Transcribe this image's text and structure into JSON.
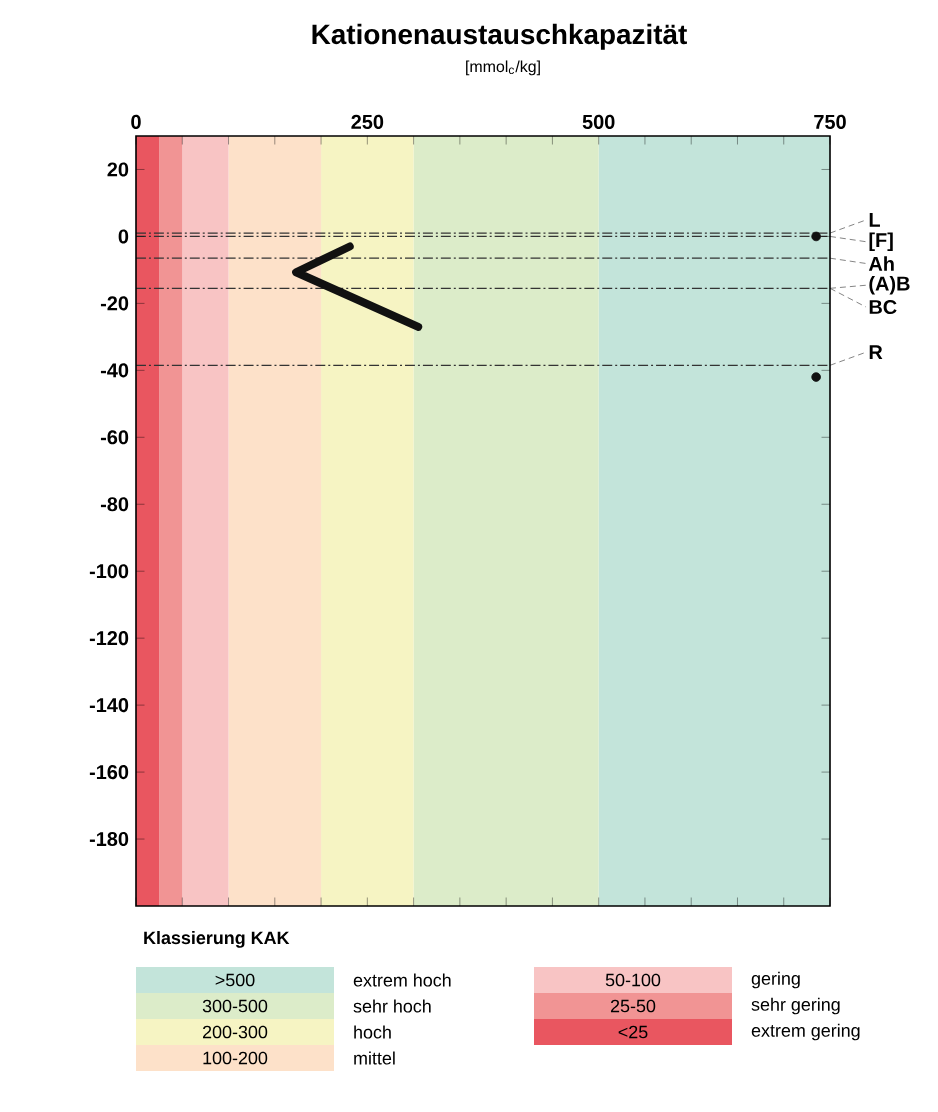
{
  "chart_data": {
    "type": "line",
    "title": "Kationenaustauschkapazität",
    "xlabel": "[mmol$_{c}$/kg]",
    "legend_title": "Klassierung KAK",
    "xlim": [
      0,
      750
    ],
    "ylim": [
      -200,
      30
    ],
    "xticks": [
      0,
      {
        "value": 50,
        "label": null
      },
      {
        "value": 100,
        "label": null
      },
      {
        "value": 150,
        "label": null
      },
      {
        "value": 200,
        "label": null
      },
      250,
      {
        "value": 300,
        "label": null
      },
      {
        "value": 350,
        "label": null
      },
      {
        "value": 400,
        "label": null
      },
      {
        "value": 450,
        "label": null
      },
      500,
      {
        "value": 550,
        "label": null
      },
      {
        "value": 600,
        "label": null
      },
      {
        "value": 650,
        "label": null
      },
      {
        "value": 700,
        "label": null
      },
      750
    ],
    "yticks": [
      20,
      0,
      -20,
      -40,
      -60,
      -80,
      -100,
      -120,
      -140,
      -160,
      -180
    ],
    "series": [
      {
        "color": "#111111",
        "x": [
          231,
          173,
          305
        ],
        "values": [
          -3,
          -10.7,
          -27
        ]
      },
      {
        "type": "scatter",
        "color": "#111111",
        "x": [
          735,
          735
        ],
        "values": [
          0,
          -42
        ]
      }
    ],
    "ref_lines": [
      {
        "axis": "y",
        "value": 1,
        "label": "L",
        "color": "#333333",
        "line_style": "dashdot"
      },
      {
        "axis": "y",
        "value": 0,
        "label": "[F]",
        "color": "#333333",
        "line_style": "dashdot"
      },
      {
        "axis": "y",
        "value": -6.5,
        "label": "Ah",
        "color": "#333333",
        "line_style": "dashdot"
      },
      {
        "axis": "y",
        "value": -15.5,
        "label": "(A)B",
        "color": "#333333",
        "line_style": "dashdot"
      },
      {
        "axis": "y",
        "value": -38.5,
        "label": "R",
        "color": "#333333",
        "line_style": "dashdot"
      }
    ],
    "bands": [
      {
        "axis": "x",
        "from": 500,
        "to": 750,
        "color": "#c3e4da"
      },
      {
        "axis": "x",
        "from": 300,
        "to": 500,
        "color": "#dcecc9"
      },
      {
        "axis": "x",
        "from": 200,
        "to": 300,
        "color": "#f6f4c3"
      },
      {
        "axis": "x",
        "from": 100,
        "to": 200,
        "color": "#fde1c9"
      },
      {
        "axis": "x",
        "from": 50,
        "to": 100,
        "color": "#f8c4c4"
      },
      {
        "axis": "x",
        "from": 25,
        "to": 50,
        "color": "#f19494"
      },
      {
        "axis": "x",
        "from": 0,
        "to": 25,
        "color": "#e95660"
      }
    ],
    "annotations": [
      {
        "text": "BC",
        "x": 750,
        "y": -15.5
      },
      ">500",
      "extrem hoch",
      "300-500",
      "sehr hoch",
      "200-300",
      "hoch",
      "100-200",
      "mittel",
      "50-100",
      "gering",
      "25-50",
      "sehr gering",
      "<25",
      "extrem gering"
    ]
  }
}
